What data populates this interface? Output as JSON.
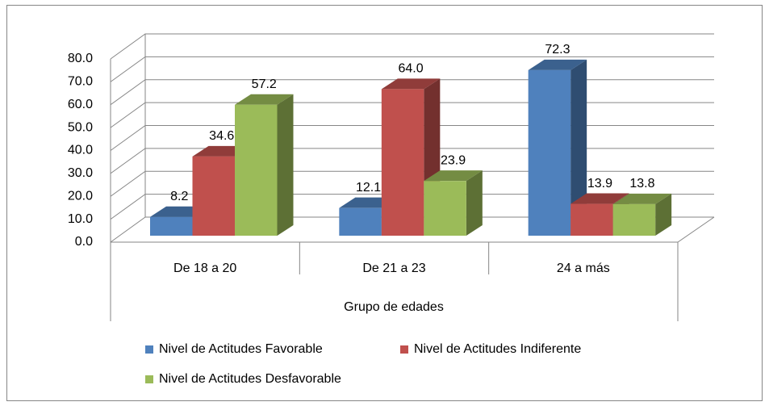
{
  "chart_data": {
    "type": "bar3d",
    "x_label": "Grupo de edades",
    "categories": [
      "De 18 a 20",
      "De 21 a 23",
      "24 a más"
    ],
    "series": [
      {
        "name": "Nivel de Actitudes Favorable",
        "color": "#4f81bd",
        "values": [
          8.2,
          12.1,
          72.3
        ],
        "value_labels": [
          "8.2",
          "12.1",
          "72.3"
        ]
      },
      {
        "name": "Nivel de Actitudes Indiferente",
        "color": "#c0504d",
        "values": [
          34.6,
          64.0,
          13.9
        ],
        "value_labels": [
          "34.6",
          "64.0",
          "13.9"
        ]
      },
      {
        "name": "Nivel de Actitudes Desfavorable",
        "color": "#9bbb59",
        "values": [
          57.2,
          23.9,
          13.8
        ],
        "value_labels": [
          "57.2",
          "23.9",
          "13.8"
        ]
      }
    ],
    "ylim": [
      0,
      80
    ],
    "yticks": [
      {
        "value": 0,
        "label": "0.0"
      },
      {
        "value": 10,
        "label": "10.0"
      },
      {
        "value": 20,
        "label": "20.0"
      },
      {
        "value": 30,
        "label": "30.0"
      },
      {
        "value": 40,
        "label": "40.0"
      },
      {
        "value": 50,
        "label": "50.0"
      },
      {
        "value": 60,
        "label": "60.0"
      },
      {
        "value": 70,
        "label": "70.0"
      },
      {
        "value": 80,
        "label": "80.0"
      }
    ],
    "grid": true,
    "legend": "bottom"
  }
}
